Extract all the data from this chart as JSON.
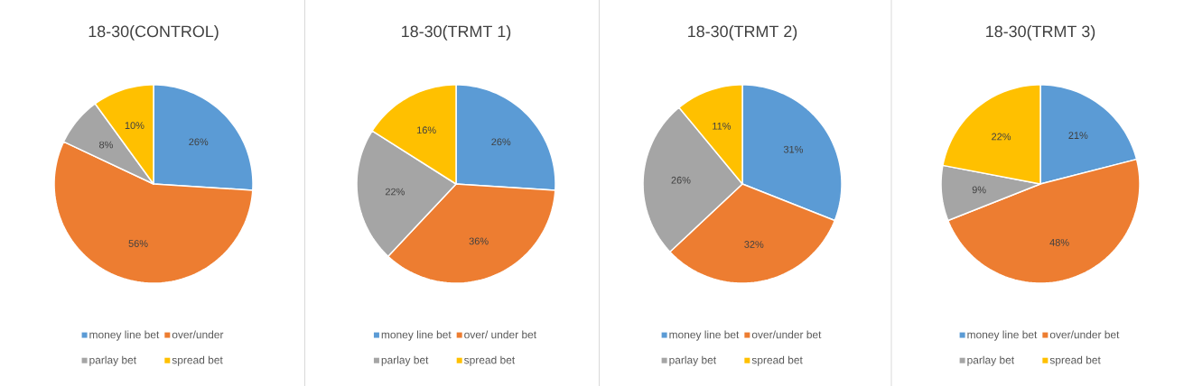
{
  "chart_data": [
    {
      "type": "pie",
      "title": "18-30(CONTROL)",
      "categories": [
        "money line bet",
        "over/under",
        "parlay bet",
        "spread bet"
      ],
      "values": [
        26,
        56,
        8,
        10
      ],
      "value_labels": [
        "26%",
        "56%",
        "8%",
        "10%"
      ],
      "colors": [
        "#5b9bd5",
        "#ed7d31",
        "#a5a5a5",
        "#ffc000"
      ],
      "legend": "bottom"
    },
    {
      "type": "pie",
      "title": "18-30(TRMT 1)",
      "categories": [
        "money line bet",
        "over/ under bet",
        "parlay bet",
        "spread bet"
      ],
      "values": [
        26,
        36,
        22,
        16
      ],
      "value_labels": [
        "26%",
        "36%",
        "22%",
        "16%"
      ],
      "colors": [
        "#5b9bd5",
        "#ed7d31",
        "#a5a5a5",
        "#ffc000"
      ],
      "legend": "bottom"
    },
    {
      "type": "pie",
      "title": "18-30(TRMT 2)",
      "categories": [
        "money line bet",
        "over/under bet",
        "parlay bet",
        "spread bet"
      ],
      "values": [
        31,
        32,
        26,
        11
      ],
      "value_labels": [
        "31%",
        "32%",
        "26%",
        "11%"
      ],
      "colors": [
        "#5b9bd5",
        "#ed7d31",
        "#a5a5a5",
        "#ffc000"
      ],
      "legend": "bottom"
    },
    {
      "type": "pie",
      "title": "18-30(TRMT 3)",
      "categories": [
        "money line bet",
        "over/under bet",
        "parlay bet",
        "spread bet"
      ],
      "values": [
        21,
        48,
        9,
        22
      ],
      "value_labels": [
        "21%",
        "48%",
        "9%",
        "22%"
      ],
      "colors": [
        "#5b9bd5",
        "#ed7d31",
        "#a5a5a5",
        "#ffc000"
      ],
      "legend": "bottom"
    }
  ]
}
